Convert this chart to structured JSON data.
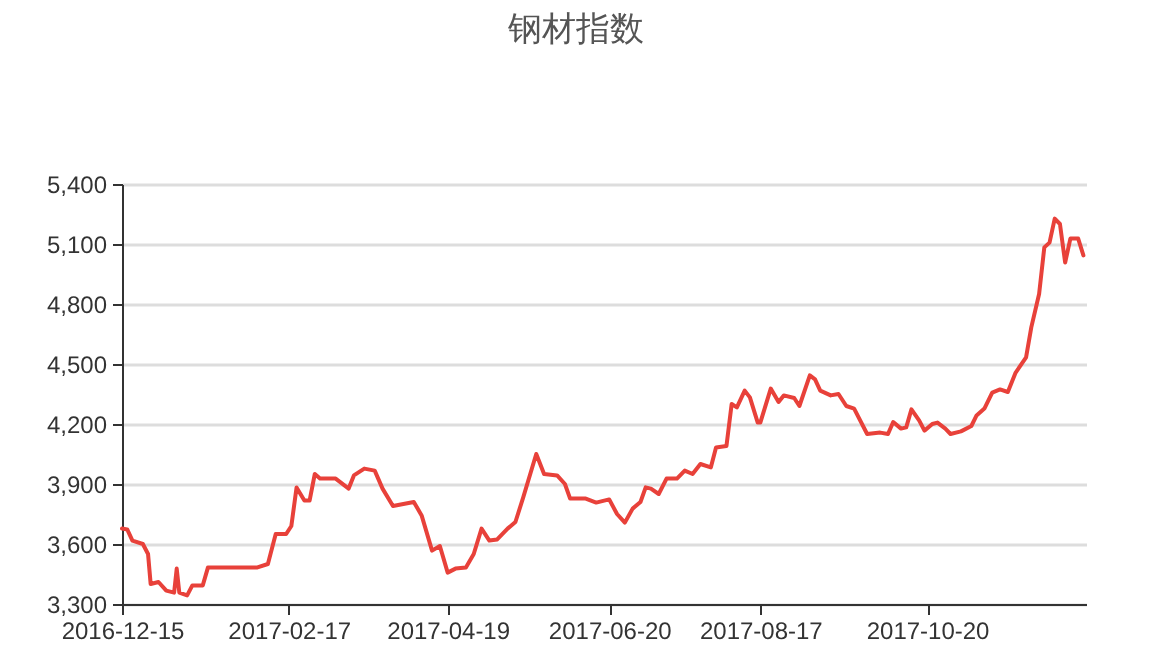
{
  "chart_data": {
    "type": "line",
    "title": "钢材指数",
    "x": [
      "2016-12-15",
      "2016-12-17",
      "2016-12-19",
      "2016-12-23",
      "2016-12-25",
      "2016-12-26",
      "2016-12-29",
      "2017-01-01",
      "2017-01-04",
      "2017-01-05",
      "2017-01-06",
      "2017-01-09",
      "2017-01-11",
      "2017-01-15",
      "2017-01-17",
      "2017-02-05",
      "2017-02-09",
      "2017-02-12",
      "2017-02-16",
      "2017-02-18",
      "2017-02-20",
      "2017-02-23",
      "2017-02-25",
      "2017-02-27",
      "2017-03-01",
      "2017-03-07",
      "2017-03-12",
      "2017-03-14",
      "2017-03-18",
      "2017-03-22",
      "2017-03-25",
      "2017-03-29",
      "2017-04-02",
      "2017-04-06",
      "2017-04-09",
      "2017-04-13",
      "2017-04-16",
      "2017-04-19",
      "2017-04-22",
      "2017-04-26",
      "2017-04-29",
      "2017-05-02",
      "2017-05-05",
      "2017-05-08",
      "2017-05-12",
      "2017-05-15",
      "2017-05-18",
      "2017-05-23",
      "2017-05-26",
      "2017-05-31",
      "2017-06-03",
      "2017-06-05",
      "2017-06-11",
      "2017-06-15",
      "2017-06-20",
      "2017-06-23",
      "2017-06-26",
      "2017-06-29",
      "2017-07-02",
      "2017-07-04",
      "2017-07-06",
      "2017-07-09",
      "2017-07-12",
      "2017-07-16",
      "2017-07-19",
      "2017-07-22",
      "2017-07-25",
      "2017-07-29",
      "2017-07-31",
      "2017-08-04",
      "2017-08-06",
      "2017-08-08",
      "2017-08-11",
      "2017-08-13",
      "2017-08-16",
      "2017-08-17",
      "2017-08-21",
      "2017-08-24",
      "2017-08-26",
      "2017-08-30",
      "2017-09-01",
      "2017-09-05",
      "2017-09-07",
      "2017-09-09",
      "2017-09-13",
      "2017-09-16",
      "2017-09-19",
      "2017-09-22",
      "2017-09-27",
      "2017-10-02",
      "2017-10-05",
      "2017-10-07",
      "2017-10-10",
      "2017-10-12",
      "2017-10-14",
      "2017-10-17",
      "2017-10-19",
      "2017-10-22",
      "2017-10-24",
      "2017-10-27",
      "2017-10-29",
      "2017-11-02",
      "2017-11-06",
      "2017-11-08",
      "2017-11-11",
      "2017-11-14",
      "2017-11-17",
      "2017-11-20",
      "2017-11-23",
      "2017-11-27",
      "2017-11-29",
      "2017-12-02",
      "2017-12-04",
      "2017-12-06",
      "2017-12-08",
      "2017-12-10",
      "2017-12-12",
      "2017-12-14",
      "2017-12-17",
      "2017-12-19"
    ],
    "series": [
      {
        "color": "#e8413a",
        "values": [
          3677,
          3673,
          3617,
          3600,
          3550,
          3400,
          3410,
          3367,
          3357,
          3477,
          3357,
          3343,
          3393,
          3393,
          3483,
          3483,
          3500,
          3650,
          3650,
          3690,
          3883,
          3817,
          3817,
          3950,
          3927,
          3927,
          3877,
          3943,
          3977,
          3967,
          3877,
          3790,
          3800,
          3810,
          3743,
          3567,
          3590,
          3457,
          3477,
          3483,
          3550,
          3677,
          3617,
          3623,
          3677,
          3710,
          3833,
          4050,
          3950,
          3943,
          3900,
          3827,
          3827,
          3807,
          3823,
          3750,
          3707,
          3777,
          3810,
          3883,
          3877,
          3850,
          3927,
          3927,
          3967,
          3950,
          4000,
          3983,
          4083,
          4090,
          4300,
          4283,
          4367,
          4333,
          4207,
          4207,
          4377,
          4310,
          4343,
          4330,
          4290,
          4443,
          4423,
          4367,
          4343,
          4350,
          4290,
          4277,
          4150,
          4157,
          4150,
          4210,
          4177,
          4183,
          4273,
          4217,
          4167,
          4200,
          4207,
          4177,
          4150,
          4163,
          4190,
          4243,
          4277,
          4357,
          4373,
          4360,
          4457,
          4533,
          4683,
          4850,
          5083,
          5107,
          5227,
          5200,
          5007,
          5127,
          5127,
          5043
        ]
      }
    ],
    "xlim": [
      "2016-12-15",
      "2017-12-20"
    ],
    "xticks": [
      "2016-12-15",
      "2017-02-17",
      "2017-04-19",
      "2017-06-20",
      "2017-08-17",
      "2017-10-20"
    ],
    "ylim": [
      3300,
      5400
    ],
    "yticks": [
      {
        "value": 3300,
        "label": "3,300"
      },
      {
        "value": 3600,
        "label": "3,600"
      },
      {
        "value": 3900,
        "label": "3,900"
      },
      {
        "value": 4200,
        "label": "4,200"
      },
      {
        "value": 4500,
        "label": "4,500"
      },
      {
        "value": 4800,
        "label": "4,800"
      },
      {
        "value": 5100,
        "label": "5,100"
      },
      {
        "value": 5400,
        "label": "5,400"
      }
    ],
    "grid": "y",
    "marker": "none",
    "line_style": "solid"
  }
}
